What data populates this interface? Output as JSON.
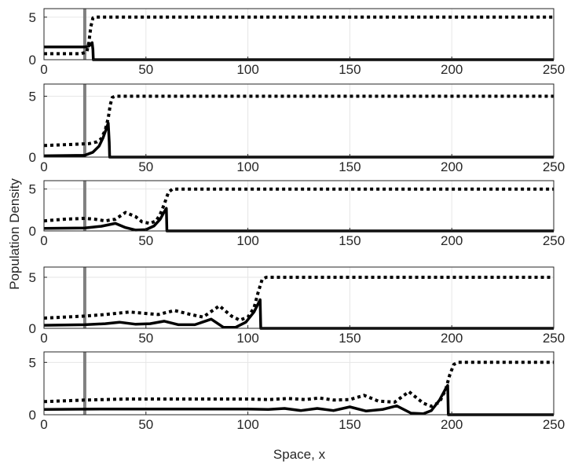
{
  "chart_data": {
    "type": "line",
    "layout": "5 stacked panels sharing x axis",
    "xlabel": "Space, x",
    "ylabel": "Population Density",
    "xlim": [
      0,
      250
    ],
    "ylim": [
      0,
      6
    ],
    "xticks": [
      0,
      50,
      100,
      150,
      200,
      250
    ],
    "yticks": [
      0,
      5
    ],
    "grid": true,
    "vertical_reference_line": {
      "x": 20,
      "color": "#808080"
    },
    "styles": {
      "dotted_series_color": "#000000",
      "solid_series_color": "#000000",
      "reference_line_color": "#808080"
    },
    "panels": [
      {
        "series": [
          {
            "style": "dotted",
            "x": [
              0,
              18,
              21,
              22,
              23,
              24,
              25,
              250
            ],
            "y": [
              0.7,
              0.7,
              0.9,
              2.0,
              3.9,
              4.9,
              5.0,
              5.0
            ]
          },
          {
            "style": "solid",
            "x": [
              0,
              20,
              21,
              22,
              23,
              23.6,
              24,
              24.2,
              250
            ],
            "y": [
              1.5,
              1.5,
              1.55,
              1.6,
              1.8,
              2.0,
              1.2,
              0,
              0
            ]
          }
        ]
      },
      {
        "series": [
          {
            "style": "dotted",
            "x": [
              0,
              15,
              22,
              26,
              28,
              30,
              31.5,
              32.5,
              33.5,
              35,
              250
            ],
            "y": [
              0.95,
              1.05,
              1.1,
              1.25,
              1.5,
              2.2,
              3.2,
              4.3,
              4.9,
              5.0,
              5.0
            ]
          },
          {
            "style": "solid",
            "x": [
              0,
              20,
              24,
              27,
              29,
              30.5,
              31.5,
              32,
              32.2,
              250
            ],
            "y": [
              0.1,
              0.15,
              0.4,
              0.9,
              1.6,
              2.3,
              2.8,
              1.2,
              0,
              0
            ]
          }
        ]
      },
      {
        "series": [
          {
            "style": "dotted",
            "x": [
              0,
              10,
              20,
              25,
              30,
              35,
              40,
              45,
              48,
              52,
              55,
              57,
              59,
              61,
              63,
              250
            ],
            "y": [
              1.2,
              1.4,
              1.5,
              1.4,
              1.2,
              1.4,
              2.2,
              1.7,
              1.1,
              0.9,
              1.2,
              2.0,
              3.2,
              4.6,
              5.0,
              5.0
            ]
          },
          {
            "style": "solid",
            "x": [
              0,
              20,
              28,
              35,
              40,
              45,
              50,
              54,
              57,
              59,
              60,
              60.3,
              250
            ],
            "y": [
              0.3,
              0.35,
              0.55,
              0.9,
              0.4,
              0.1,
              0.15,
              0.6,
              1.4,
              2.3,
              2.7,
              0,
              0
            ]
          }
        ]
      },
      {
        "series": [
          {
            "style": "dotted",
            "x": [
              0,
              20,
              30,
              42,
              50,
              56,
              64,
              72,
              78,
              86,
              92,
              96,
              100,
              103,
              105,
              107,
              109,
              250
            ],
            "y": [
              1.0,
              1.2,
              1.35,
              1.6,
              1.45,
              1.35,
              1.75,
              1.35,
              1.1,
              2.2,
              1.2,
              0.8,
              1.1,
              2.0,
              3.5,
              4.8,
              5.0,
              5.0
            ]
          },
          {
            "style": "solid",
            "x": [
              0,
              20,
              30,
              37,
              45,
              52,
              59,
              66,
              74,
              82,
              88,
              94,
              99,
              103,
              105,
              106,
              106.3,
              250
            ],
            "y": [
              0.3,
              0.35,
              0.45,
              0.6,
              0.4,
              0.45,
              0.7,
              0.35,
              0.35,
              0.9,
              0.1,
              0.1,
              0.6,
              1.6,
              2.4,
              2.8,
              0,
              0
            ]
          }
        ]
      },
      {
        "series": [
          {
            "style": "dotted",
            "x": [
              0,
              20,
              40,
              60,
              80,
              100,
              110,
              120,
              128,
              135,
              142,
              150,
              157,
              164,
              172,
              179,
              186,
              190,
              194,
              197,
              199,
              201,
              203,
              250
            ],
            "y": [
              1.25,
              1.4,
              1.5,
              1.5,
              1.5,
              1.5,
              1.45,
              1.55,
              1.45,
              1.6,
              1.4,
              1.45,
              1.85,
              1.3,
              1.2,
              2.2,
              1.1,
              0.8,
              1.2,
              2.4,
              3.8,
              4.8,
              5.0,
              5.0
            ]
          },
          {
            "style": "solid",
            "x": [
              0,
              30,
              60,
              100,
              110,
              118,
              126,
              134,
              142,
              150,
              158,
              166,
              173,
              180,
              186,
              190,
              194,
              196.5,
              198,
              198.3,
              250
            ],
            "y": [
              0.5,
              0.55,
              0.55,
              0.55,
              0.5,
              0.6,
              0.4,
              0.6,
              0.4,
              0.75,
              0.35,
              0.5,
              0.85,
              0.15,
              0.1,
              0.4,
              1.4,
              2.3,
              2.8,
              0,
              0
            ]
          }
        ]
      }
    ]
  }
}
